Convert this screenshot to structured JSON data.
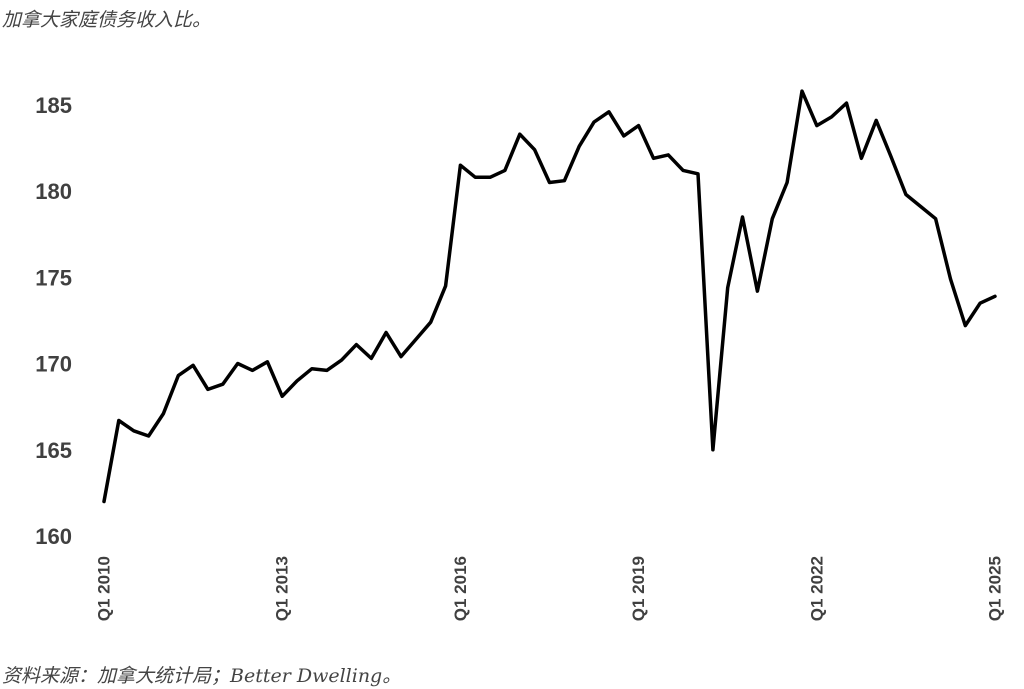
{
  "title": "加拿大家庭债务收入比。",
  "source": "资料来源：加拿大统计局；Better Dwelling。",
  "chart_data": {
    "type": "line",
    "title": "加拿大家庭债务收入比。",
    "xlabel": "",
    "ylabel": "",
    "ylim": [
      160,
      186.5
    ],
    "yticks": [
      160,
      165,
      170,
      175,
      180,
      185
    ],
    "xticks": [
      {
        "label": "Q1 2010",
        "index": 0
      },
      {
        "label": "Q1 2013",
        "index": 12
      },
      {
        "label": "Q1 2016",
        "index": 24
      },
      {
        "label": "Q1 2019",
        "index": 36
      },
      {
        "label": "Q1 2022",
        "index": 48
      },
      {
        "label": "Q1 2025",
        "index": 60
      }
    ],
    "grid": false,
    "legend": "none",
    "line_color": "#000000",
    "series": [
      {
        "values": [
          162.0,
          166.7,
          166.1,
          165.8,
          167.1,
          169.3,
          169.9,
          168.5,
          168.8,
          170.0,
          169.6,
          170.1,
          168.1,
          169.0,
          169.7,
          169.6,
          170.2,
          171.1,
          170.3,
          171.8,
          170.4,
          171.4,
          172.4,
          174.5,
          181.5,
          180.8,
          180.8,
          181.2,
          183.3,
          182.4,
          180.5,
          180.6,
          182.6,
          184.0,
          184.6,
          183.2,
          183.8,
          181.9,
          182.1,
          181.2,
          181.0,
          165.0,
          174.4,
          178.5,
          174.2,
          178.4,
          180.5,
          185.8,
          183.8,
          184.3,
          185.1,
          181.9,
          184.1,
          182.0,
          179.8,
          179.1,
          178.4,
          174.9,
          172.2,
          173.5,
          173.9
        ]
      }
    ]
  }
}
